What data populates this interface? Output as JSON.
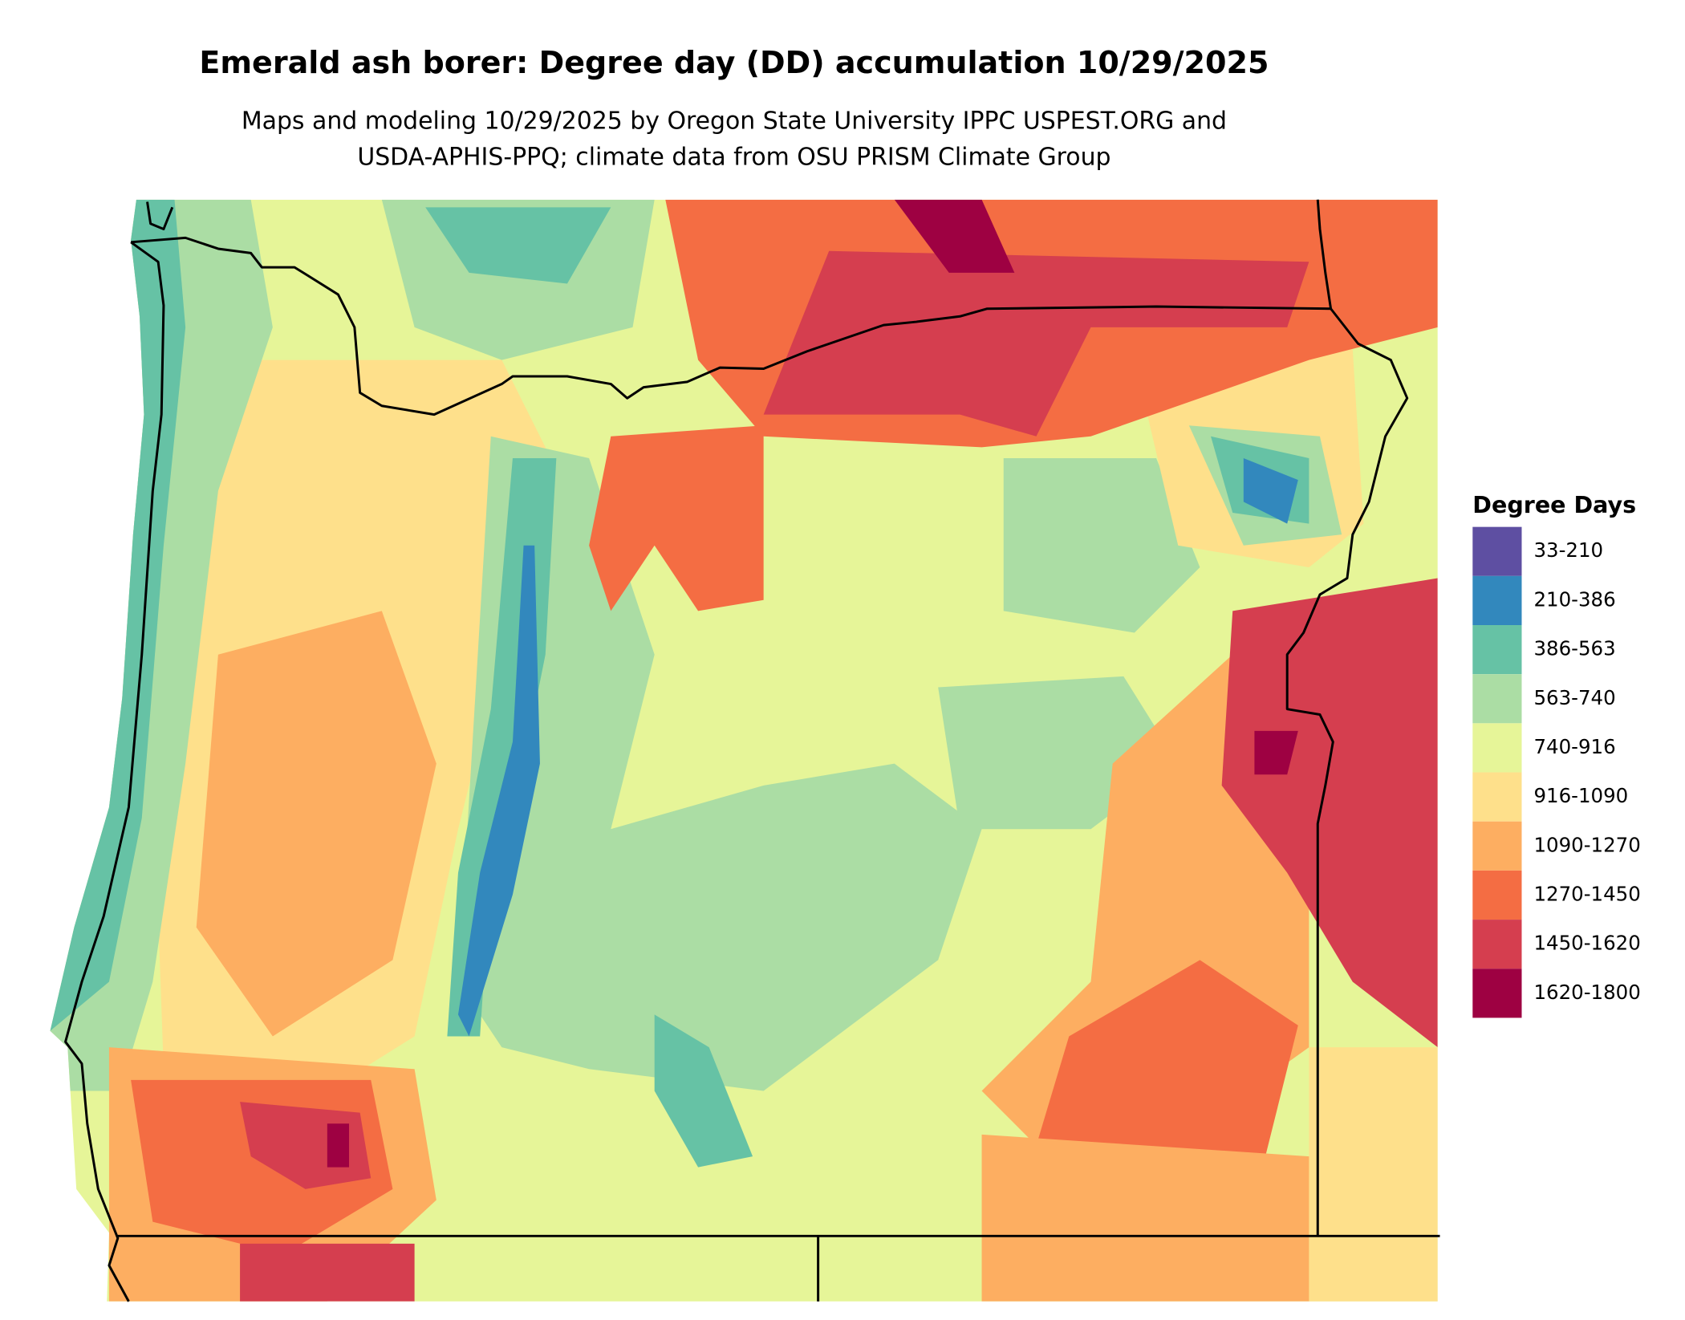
{
  "title": "Emerald ash borer: Degree day (DD) accumulation 10/29/2025",
  "subtitle": [
    "Maps and modeling 10/29/2025 by Oregon State University IPPC USPEST.ORG and",
    "USDA-APHIS-PPQ; climate data from OSU PRISM Climate Group"
  ],
  "legend": {
    "title": "Degree Days",
    "items": [
      {
        "label": "33-210",
        "color": "#5e4fa2"
      },
      {
        "label": "210-386",
        "color": "#3288bd"
      },
      {
        "label": "386-563",
        "color": "#66c2a5"
      },
      {
        "label": "563-740",
        "color": "#abdda4"
      },
      {
        "label": "740-916",
        "color": "#e6f598"
      },
      {
        "label": "916-1090",
        "color": "#fee08b"
      },
      {
        "label": "1090-1270",
        "color": "#fdae61"
      },
      {
        "label": "1270-1450",
        "color": "#f46d43"
      },
      {
        "label": "1450-1620",
        "color": "#d53e4f"
      },
      {
        "label": "1620-1800",
        "color": "#9e0142"
      }
    ]
  }
}
